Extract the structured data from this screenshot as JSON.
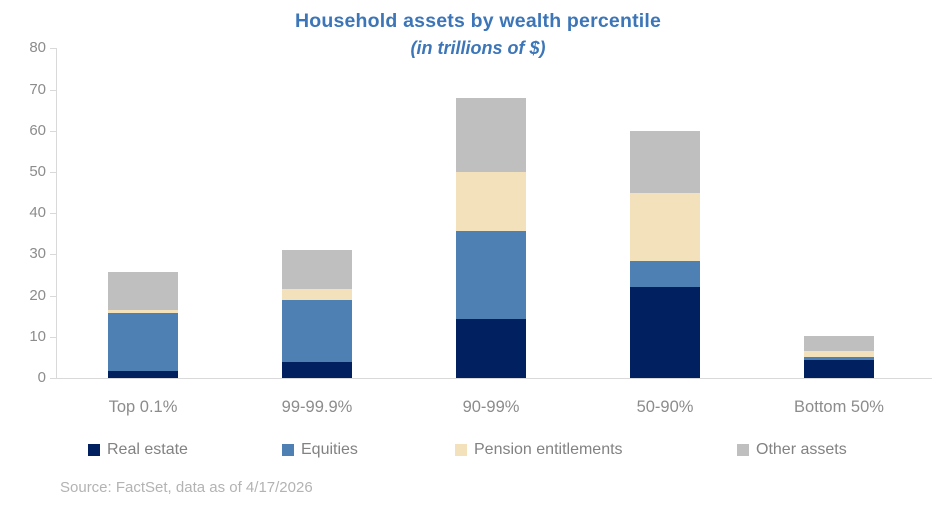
{
  "header": {
    "title": "Household assets by wealth percentile",
    "subtitle": "(in trillions of $)"
  },
  "footer": {
    "source": "Source: FactSet, data as of 4/17/2026"
  },
  "colors": {
    "title_blue": "#3c76b8",
    "axis_line": "#d9d9d9",
    "tick_label": "#8c8c8c",
    "legend_text": "#828282",
    "source_text": "#b3b3b3",
    "real_estate": "#002060",
    "equities": "#4e80b4",
    "pension_entitlements": "#f2e1bb",
    "other_assets": "#bfbfbf"
  },
  "chart_data": {
    "type": "bar",
    "stacked": true,
    "title": "Household assets by wealth percentile",
    "subtitle": "(in trillions of $)",
    "xlabel": "",
    "ylabel": "",
    "categories": [
      "Top 0.1%",
      "99-99.9%",
      "90-99%",
      "50-90%",
      "Bottom 50%"
    ],
    "series": [
      {
        "name": "Real estate",
        "color": "#002060",
        "values": [
          1.8,
          4.0,
          14.3,
          22.0,
          4.3
        ]
      },
      {
        "name": "Equities",
        "color": "#4e80b4",
        "values": [
          14.0,
          15.0,
          21.5,
          6.5,
          0.9
        ]
      },
      {
        "name": "Pension entitlements",
        "color": "#f2e1bb",
        "values": [
          0.7,
          2.5,
          14.2,
          16.5,
          1.4
        ]
      },
      {
        "name": "Other assets",
        "color": "#bfbfbf",
        "values": [
          9.2,
          9.5,
          18.0,
          15.0,
          3.6
        ]
      }
    ],
    "stack_totals": [
      25.7,
      31.0,
      68.0,
      60.0,
      10.2
    ],
    "ylim": [
      0,
      80
    ],
    "yticks": [
      0,
      10,
      20,
      30,
      40,
      50,
      60,
      70,
      80
    ],
    "grid": false,
    "legend_position": "bottom"
  }
}
